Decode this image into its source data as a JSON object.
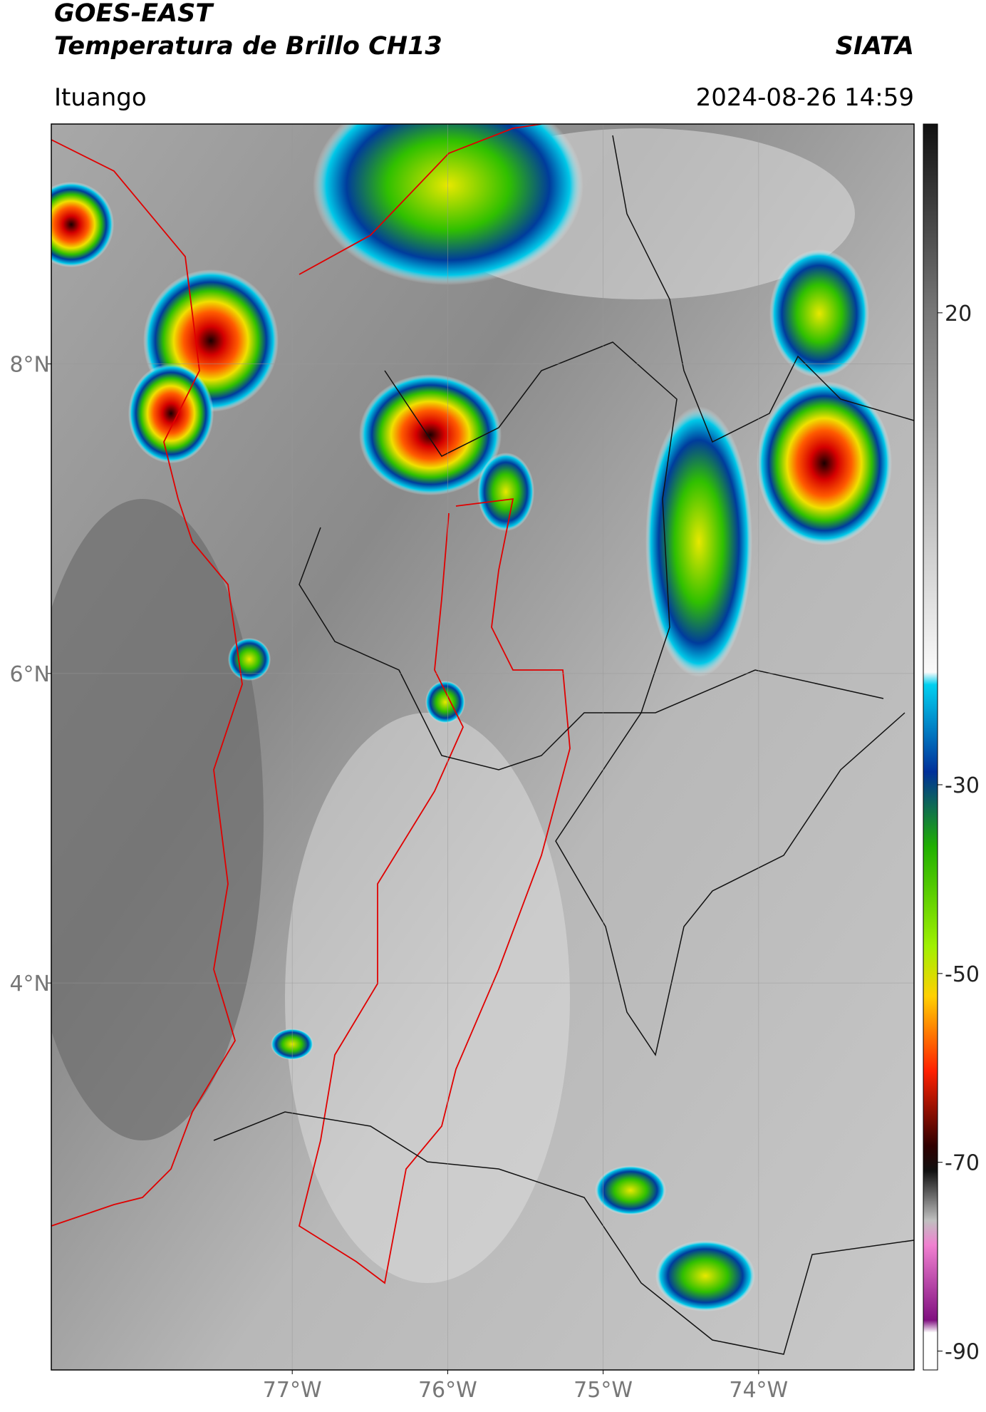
{
  "header": {
    "title": "GOES-EAST",
    "subtitle": "Temperatura de Brillo CH13",
    "source": "SIATA",
    "region": "Ituango",
    "datetime": "2024-08-26 14:59"
  },
  "map": {
    "xlim": [
      -78.55,
      -73.0
    ],
    "ylim": [
      1.5,
      9.55
    ],
    "xticks": [
      {
        "value": -77,
        "label": "77°W"
      },
      {
        "value": -76,
        "label": "76°W"
      },
      {
        "value": -75,
        "label": "75°W"
      },
      {
        "value": -74,
        "label": "74°W"
      }
    ],
    "yticks": [
      {
        "value": 8,
        "label": "8°N"
      },
      {
        "value": 6,
        "label": "6°N"
      },
      {
        "value": 4,
        "label": "4°N"
      }
    ],
    "grid": true
  },
  "colorbar": {
    "ylim": [
      -92,
      40
    ],
    "yticks": [
      20,
      -30,
      -50,
      -70,
      -90
    ]
  }
}
